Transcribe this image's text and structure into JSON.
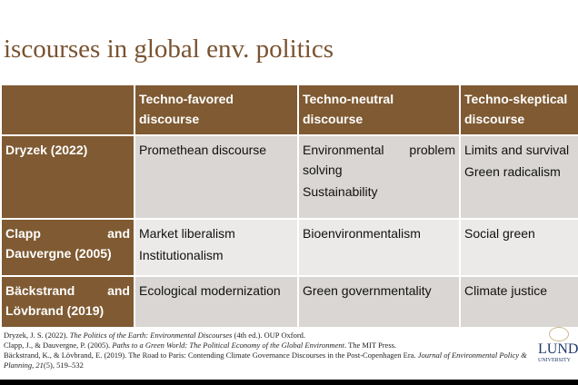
{
  "title": "iscourses in global env. politics",
  "table": {
    "headers": [
      "",
      "Techno-favored discourse",
      "Techno-neutral discourse",
      "Techno-skeptical discourse"
    ],
    "rows": [
      {
        "source": "Dryzek (2022)",
        "favored": [
          "Promethean discourse"
        ],
        "neutral": [
          "Environmental problem solving",
          "Sustainability"
        ],
        "skeptical": [
          "Limits and survival",
          "Green radicalism"
        ]
      },
      {
        "source": "Clapp and Dauvergne (2005)",
        "favored": [
          "Market liberalism",
          "Institutionalism"
        ],
        "neutral": [
          "Bioenvironmentalism"
        ],
        "skeptical": [
          "Social green"
        ]
      },
      {
        "source": "Bäckstrand and Lövbrand (2019)",
        "favored": [
          "Ecological modernization"
        ],
        "neutral": [
          "Green governmentality"
        ],
        "skeptical": [
          "Climate justice"
        ]
      }
    ]
  },
  "references": [
    {
      "pre": "Dryzek, J. S. (2022). ",
      "italic": "The Politics of the Earth: Environmental Discourses",
      "post": " (4th ed.). OUP Oxford."
    },
    {
      "pre": "Clapp, J., & Dauvergne, P. (2005). ",
      "italic": "Paths to a Green World: The Political Economy of the Global Environment",
      "post": ". The MIT Press."
    },
    {
      "pre": "Bäckstrand, K., & Lövbrand, E. (2019). The Road to Paris: Contending Climate Governance Discourses in the Post-Copenhagen Era. ",
      "italic": "Journal of Environmental Policy & Planning, 21",
      "post": "(5), 519–532"
    }
  ],
  "logo": {
    "name": "LUND",
    "sub": "UNIVERSITY"
  }
}
